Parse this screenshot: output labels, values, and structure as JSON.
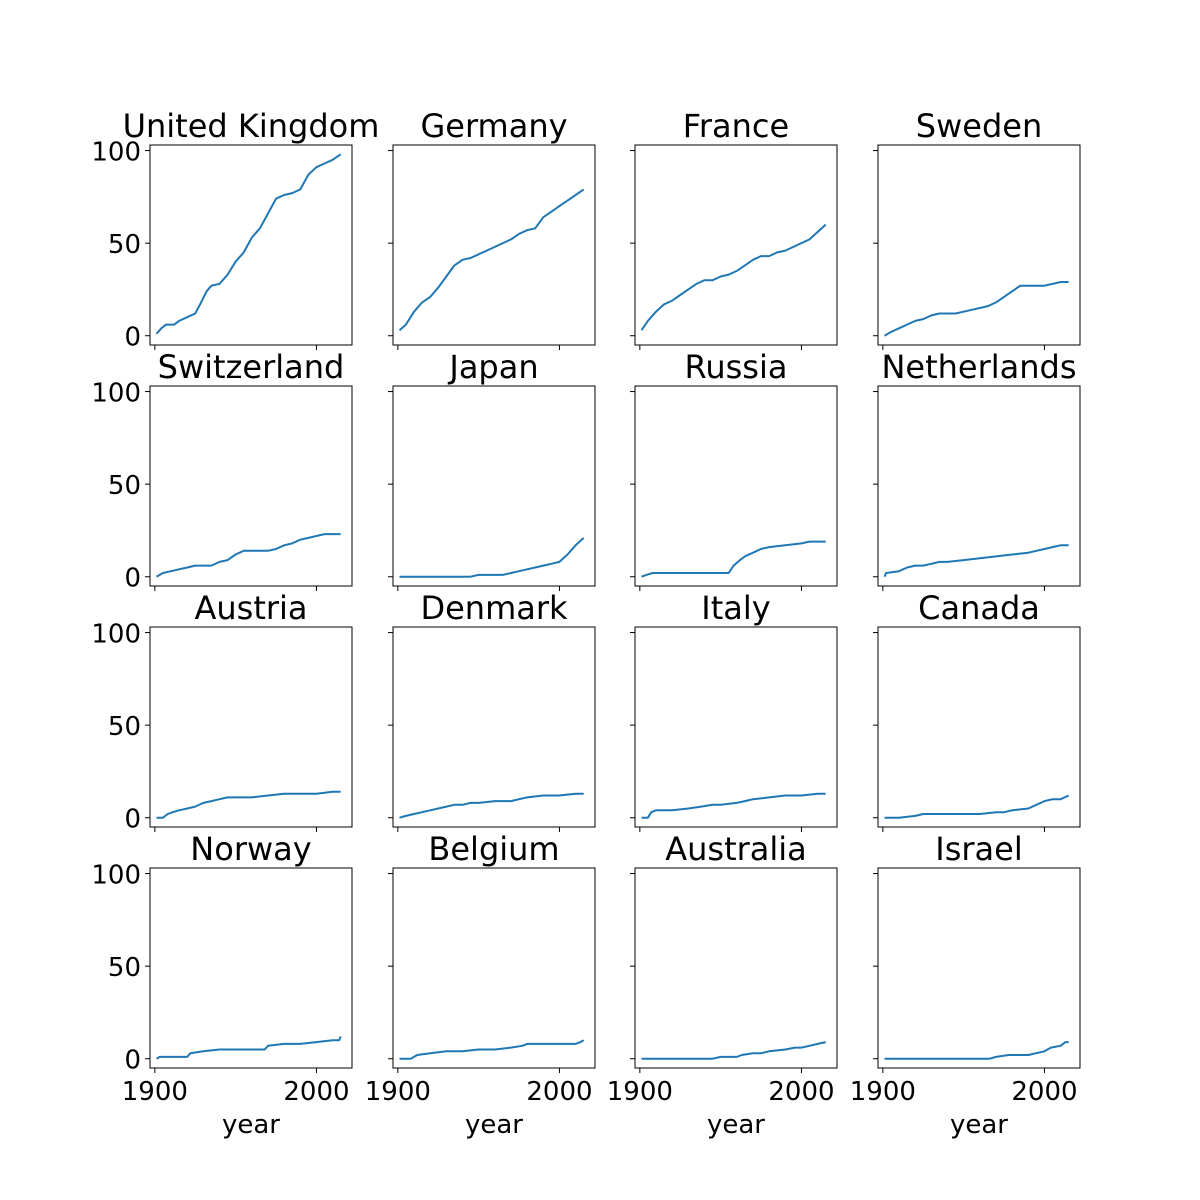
{
  "figure": {
    "type": "small-multiples",
    "line_color": "#1f77b4",
    "axis_color": "#000000",
    "background": "#ffffff"
  },
  "chart_data": [
    {
      "type": "line",
      "title": "United Kingdom",
      "xlabel": "",
      "ylabel": "",
      "xlim": [
        1897,
        2022
      ],
      "ylim": [
        -5,
        103
      ],
      "xticks": [],
      "yticks": [
        "0",
        "50",
        "100"
      ],
      "x": [
        1901,
        1904,
        1907,
        1912,
        1915,
        1920,
        1925,
        1928,
        1932,
        1935,
        1940,
        1945,
        1950,
        1955,
        1960,
        1965,
        1970,
        1975,
        1980,
        1985,
        1990,
        1995,
        2000,
        2005,
        2010,
        2015
      ],
      "y": [
        1,
        4,
        6,
        6,
        8,
        10,
        12,
        17,
        24,
        27,
        28,
        33,
        40,
        45,
        53,
        58,
        66,
        74,
        76,
        77,
        79,
        87,
        91,
        93,
        95,
        98
      ]
    },
    {
      "type": "line",
      "title": "Germany",
      "xlabel": "",
      "ylabel": "",
      "xlim": [
        1897,
        2022
      ],
      "ylim": [
        -5,
        103
      ],
      "xticks": [],
      "yticks": [],
      "x": [
        1901,
        1905,
        1910,
        1915,
        1920,
        1925,
        1930,
        1935,
        1940,
        1945,
        1950,
        1955,
        1960,
        1965,
        1970,
        1975,
        1980,
        1985,
        1990,
        1995,
        2000,
        2005,
        2010,
        2015
      ],
      "y": [
        3,
        6,
        13,
        18,
        21,
        26,
        32,
        38,
        41,
        42,
        44,
        46,
        48,
        50,
        52,
        55,
        57,
        58,
        64,
        67,
        70,
        73,
        76,
        79
      ]
    },
    {
      "type": "line",
      "title": "France",
      "xlabel": "",
      "ylabel": "",
      "xlim": [
        1897,
        2022
      ],
      "ylim": [
        -5,
        103
      ],
      "xticks": [],
      "yticks": [],
      "x": [
        1901,
        1905,
        1910,
        1915,
        1920,
        1925,
        1930,
        1935,
        1940,
        1945,
        1950,
        1955,
        1960,
        1965,
        1970,
        1975,
        1980,
        1985,
        1990,
        1995,
        2000,
        2005,
        2010,
        2015
      ],
      "y": [
        3,
        8,
        13,
        17,
        19,
        22,
        25,
        28,
        30,
        30,
        32,
        33,
        35,
        38,
        41,
        43,
        43,
        45,
        46,
        48,
        50,
        52,
        56,
        60
      ]
    },
    {
      "type": "line",
      "title": "Sweden",
      "xlabel": "",
      "ylabel": "",
      "xlim": [
        1897,
        2022
      ],
      "ylim": [
        -5,
        103
      ],
      "xticks": [],
      "yticks": [],
      "x": [
        1901,
        1905,
        1910,
        1915,
        1920,
        1925,
        1930,
        1935,
        1940,
        1945,
        1950,
        1955,
        1960,
        1965,
        1970,
        1975,
        1980,
        1985,
        1990,
        1995,
        2000,
        2005,
        2010,
        2015
      ],
      "y": [
        0,
        2,
        4,
        6,
        8,
        9,
        11,
        12,
        12,
        12,
        13,
        14,
        15,
        16,
        18,
        21,
        24,
        27,
        27,
        27,
        27,
        28,
        29,
        29
      ]
    },
    {
      "type": "line",
      "title": "Switzerland",
      "xlabel": "",
      "ylabel": "",
      "xlim": [
        1897,
        2022
      ],
      "ylim": [
        -5,
        103
      ],
      "xticks": [],
      "yticks": [
        "0",
        "50",
        "100"
      ],
      "x": [
        1901,
        1905,
        1910,
        1915,
        1920,
        1925,
        1930,
        1935,
        1940,
        1945,
        1950,
        1955,
        1960,
        1965,
        1970,
        1975,
        1980,
        1985,
        1990,
        1995,
        2000,
        2005,
        2010,
        2015
      ],
      "y": [
        0,
        2,
        3,
        4,
        5,
        6,
        6,
        6,
        8,
        9,
        12,
        14,
        14,
        14,
        14,
        15,
        17,
        18,
        20,
        21,
        22,
        23,
        23,
        23
      ]
    },
    {
      "type": "line",
      "title": "Japan",
      "xlabel": "",
      "ylabel": "",
      "xlim": [
        1897,
        2022
      ],
      "ylim": [
        -5,
        103
      ],
      "xticks": [],
      "yticks": [],
      "x": [
        1901,
        1910,
        1920,
        1930,
        1940,
        1945,
        1950,
        1955,
        1960,
        1965,
        1970,
        1975,
        1980,
        1985,
        1990,
        1995,
        2000,
        2005,
        2010,
        2015
      ],
      "y": [
        0,
        0,
        0,
        0,
        0,
        0,
        1,
        1,
        1,
        1,
        2,
        3,
        4,
        5,
        6,
        7,
        8,
        12,
        17,
        21
      ]
    },
    {
      "type": "line",
      "title": "Russia",
      "xlabel": "",
      "ylabel": "",
      "xlim": [
        1897,
        2022
      ],
      "ylim": [
        -5,
        103
      ],
      "xticks": [],
      "yticks": [],
      "x": [
        1901,
        1904,
        1908,
        1915,
        1920,
        1930,
        1940,
        1950,
        1955,
        1958,
        1962,
        1965,
        1970,
        1975,
        1980,
        1990,
        2000,
        2005,
        2010,
        2015
      ],
      "y": [
        0,
        1,
        2,
        2,
        2,
        2,
        2,
        2,
        2,
        6,
        9,
        11,
        13,
        15,
        16,
        17,
        18,
        19,
        19,
        19
      ]
    },
    {
      "type": "line",
      "title": "Netherlands",
      "xlabel": "",
      "ylabel": "",
      "xlim": [
        1897,
        2022
      ],
      "ylim": [
        -5,
        103
      ],
      "xticks": [],
      "yticks": [],
      "x": [
        1901,
        1902,
        1910,
        1915,
        1920,
        1925,
        1930,
        1935,
        1940,
        1950,
        1960,
        1970,
        1980,
        1990,
        1995,
        2000,
        2005,
        2010,
        2015
      ],
      "y": [
        0,
        2,
        3,
        5,
        6,
        6,
        7,
        8,
        8,
        9,
        10,
        11,
        12,
        13,
        14,
        15,
        16,
        17,
        17
      ]
    },
    {
      "type": "line",
      "title": "Austria",
      "xlabel": "",
      "ylabel": "",
      "xlim": [
        1897,
        2022
      ],
      "ylim": [
        -5,
        103
      ],
      "xticks": [],
      "yticks": [
        "0",
        "50",
        "100"
      ],
      "x": [
        1901,
        1905,
        1908,
        1911,
        1915,
        1920,
        1925,
        1930,
        1935,
        1940,
        1945,
        1950,
        1960,
        1970,
        1980,
        1990,
        2000,
        2010,
        2015
      ],
      "y": [
        0,
        0,
        2,
        3,
        4,
        5,
        6,
        8,
        9,
        10,
        11,
        11,
        11,
        12,
        13,
        13,
        13,
        14,
        14
      ]
    },
    {
      "type": "line",
      "title": "Denmark",
      "xlabel": "",
      "ylabel": "",
      "xlim": [
        1897,
        2022
      ],
      "ylim": [
        -5,
        103
      ],
      "xticks": [],
      "yticks": [],
      "x": [
        1901,
        1905,
        1910,
        1915,
        1920,
        1925,
        1930,
        1935,
        1940,
        1945,
        1950,
        1960,
        1970,
        1975,
        1980,
        1990,
        2000,
        2010,
        2015
      ],
      "y": [
        0,
        1,
        2,
        3,
        4,
        5,
        6,
        7,
        7,
        8,
        8,
        9,
        9,
        10,
        11,
        12,
        12,
        13,
        13
      ]
    },
    {
      "type": "line",
      "title": "Italy",
      "xlabel": "",
      "ylabel": "",
      "xlim": [
        1897,
        2022
      ],
      "ylim": [
        -5,
        103
      ],
      "xticks": [],
      "yticks": [],
      "x": [
        1901,
        1905,
        1907,
        1910,
        1920,
        1930,
        1938,
        1945,
        1950,
        1960,
        1965,
        1970,
        1980,
        1990,
        2000,
        2010,
        2015
      ],
      "y": [
        0,
        0,
        3,
        4,
        4,
        5,
        6,
        7,
        7,
        8,
        9,
        10,
        11,
        12,
        12,
        13,
        13
      ]
    },
    {
      "type": "line",
      "title": "Canada",
      "xlabel": "",
      "ylabel": "",
      "xlim": [
        1897,
        2022
      ],
      "ylim": [
        -5,
        103
      ],
      "xticks": [],
      "yticks": [],
      "x": [
        1901,
        1910,
        1920,
        1925,
        1930,
        1940,
        1950,
        1960,
        1970,
        1975,
        1980,
        1990,
        1995,
        2000,
        2005,
        2010,
        2015
      ],
      "y": [
        0,
        0,
        1,
        2,
        2,
        2,
        2,
        2,
        3,
        3,
        4,
        5,
        7,
        9,
        10,
        10,
        12
      ]
    },
    {
      "type": "line",
      "title": "Norway",
      "xlabel": "year",
      "ylabel": "",
      "xlim": [
        1897,
        2022
      ],
      "ylim": [
        -5,
        103
      ],
      "xticks": [
        "1900",
        "2000"
      ],
      "yticks": [
        "0",
        "50",
        "100"
      ],
      "x": [
        1901,
        1903,
        1910,
        1920,
        1922,
        1930,
        1940,
        1950,
        1960,
        1968,
        1970,
        1980,
        1990,
        2000,
        2010,
        2014,
        2015
      ],
      "y": [
        0,
        1,
        1,
        1,
        3,
        4,
        5,
        5,
        5,
        5,
        7,
        8,
        8,
        9,
        10,
        10,
        12
      ]
    },
    {
      "type": "line",
      "title": "Belgium",
      "xlabel": "year",
      "ylabel": "",
      "xlim": [
        1897,
        2022
      ],
      "ylim": [
        -5,
        103
      ],
      "xticks": [
        "1900",
        "2000"
      ],
      "yticks": [],
      "x": [
        1901,
        1908,
        1912,
        1920,
        1930,
        1940,
        1950,
        1960,
        1970,
        1977,
        1980,
        1990,
        2000,
        2010,
        2013,
        2015
      ],
      "y": [
        0,
        0,
        2,
        3,
        4,
        4,
        5,
        5,
        6,
        7,
        8,
        8,
        8,
        8,
        9,
        10
      ]
    },
    {
      "type": "line",
      "title": "Australia",
      "xlabel": "year",
      "ylabel": "",
      "xlim": [
        1897,
        2022
      ],
      "ylim": [
        -5,
        103
      ],
      "xticks": [
        "1900",
        "2000"
      ],
      "yticks": [],
      "x": [
        1901,
        1910,
        1920,
        1930,
        1940,
        1945,
        1950,
        1960,
        1963,
        1970,
        1975,
        1980,
        1990,
        1996,
        2000,
        2005,
        2010,
        2015
      ],
      "y": [
        0,
        0,
        0,
        0,
        0,
        0,
        1,
        1,
        2,
        3,
        3,
        4,
        5,
        6,
        6,
        7,
        8,
        9
      ]
    },
    {
      "type": "line",
      "title": "Israel",
      "xlabel": "year",
      "ylabel": "",
      "xlim": [
        1897,
        2022
      ],
      "ylim": [
        -5,
        103
      ],
      "xticks": [
        "1900",
        "2000"
      ],
      "yticks": [],
      "x": [
        1901,
        1920,
        1940,
        1960,
        1966,
        1970,
        1978,
        1985,
        1990,
        2000,
        2004,
        2010,
        2013,
        2015
      ],
      "y": [
        0,
        0,
        0,
        0,
        0,
        1,
        2,
        2,
        2,
        4,
        6,
        7,
        9,
        9
      ]
    }
  ]
}
